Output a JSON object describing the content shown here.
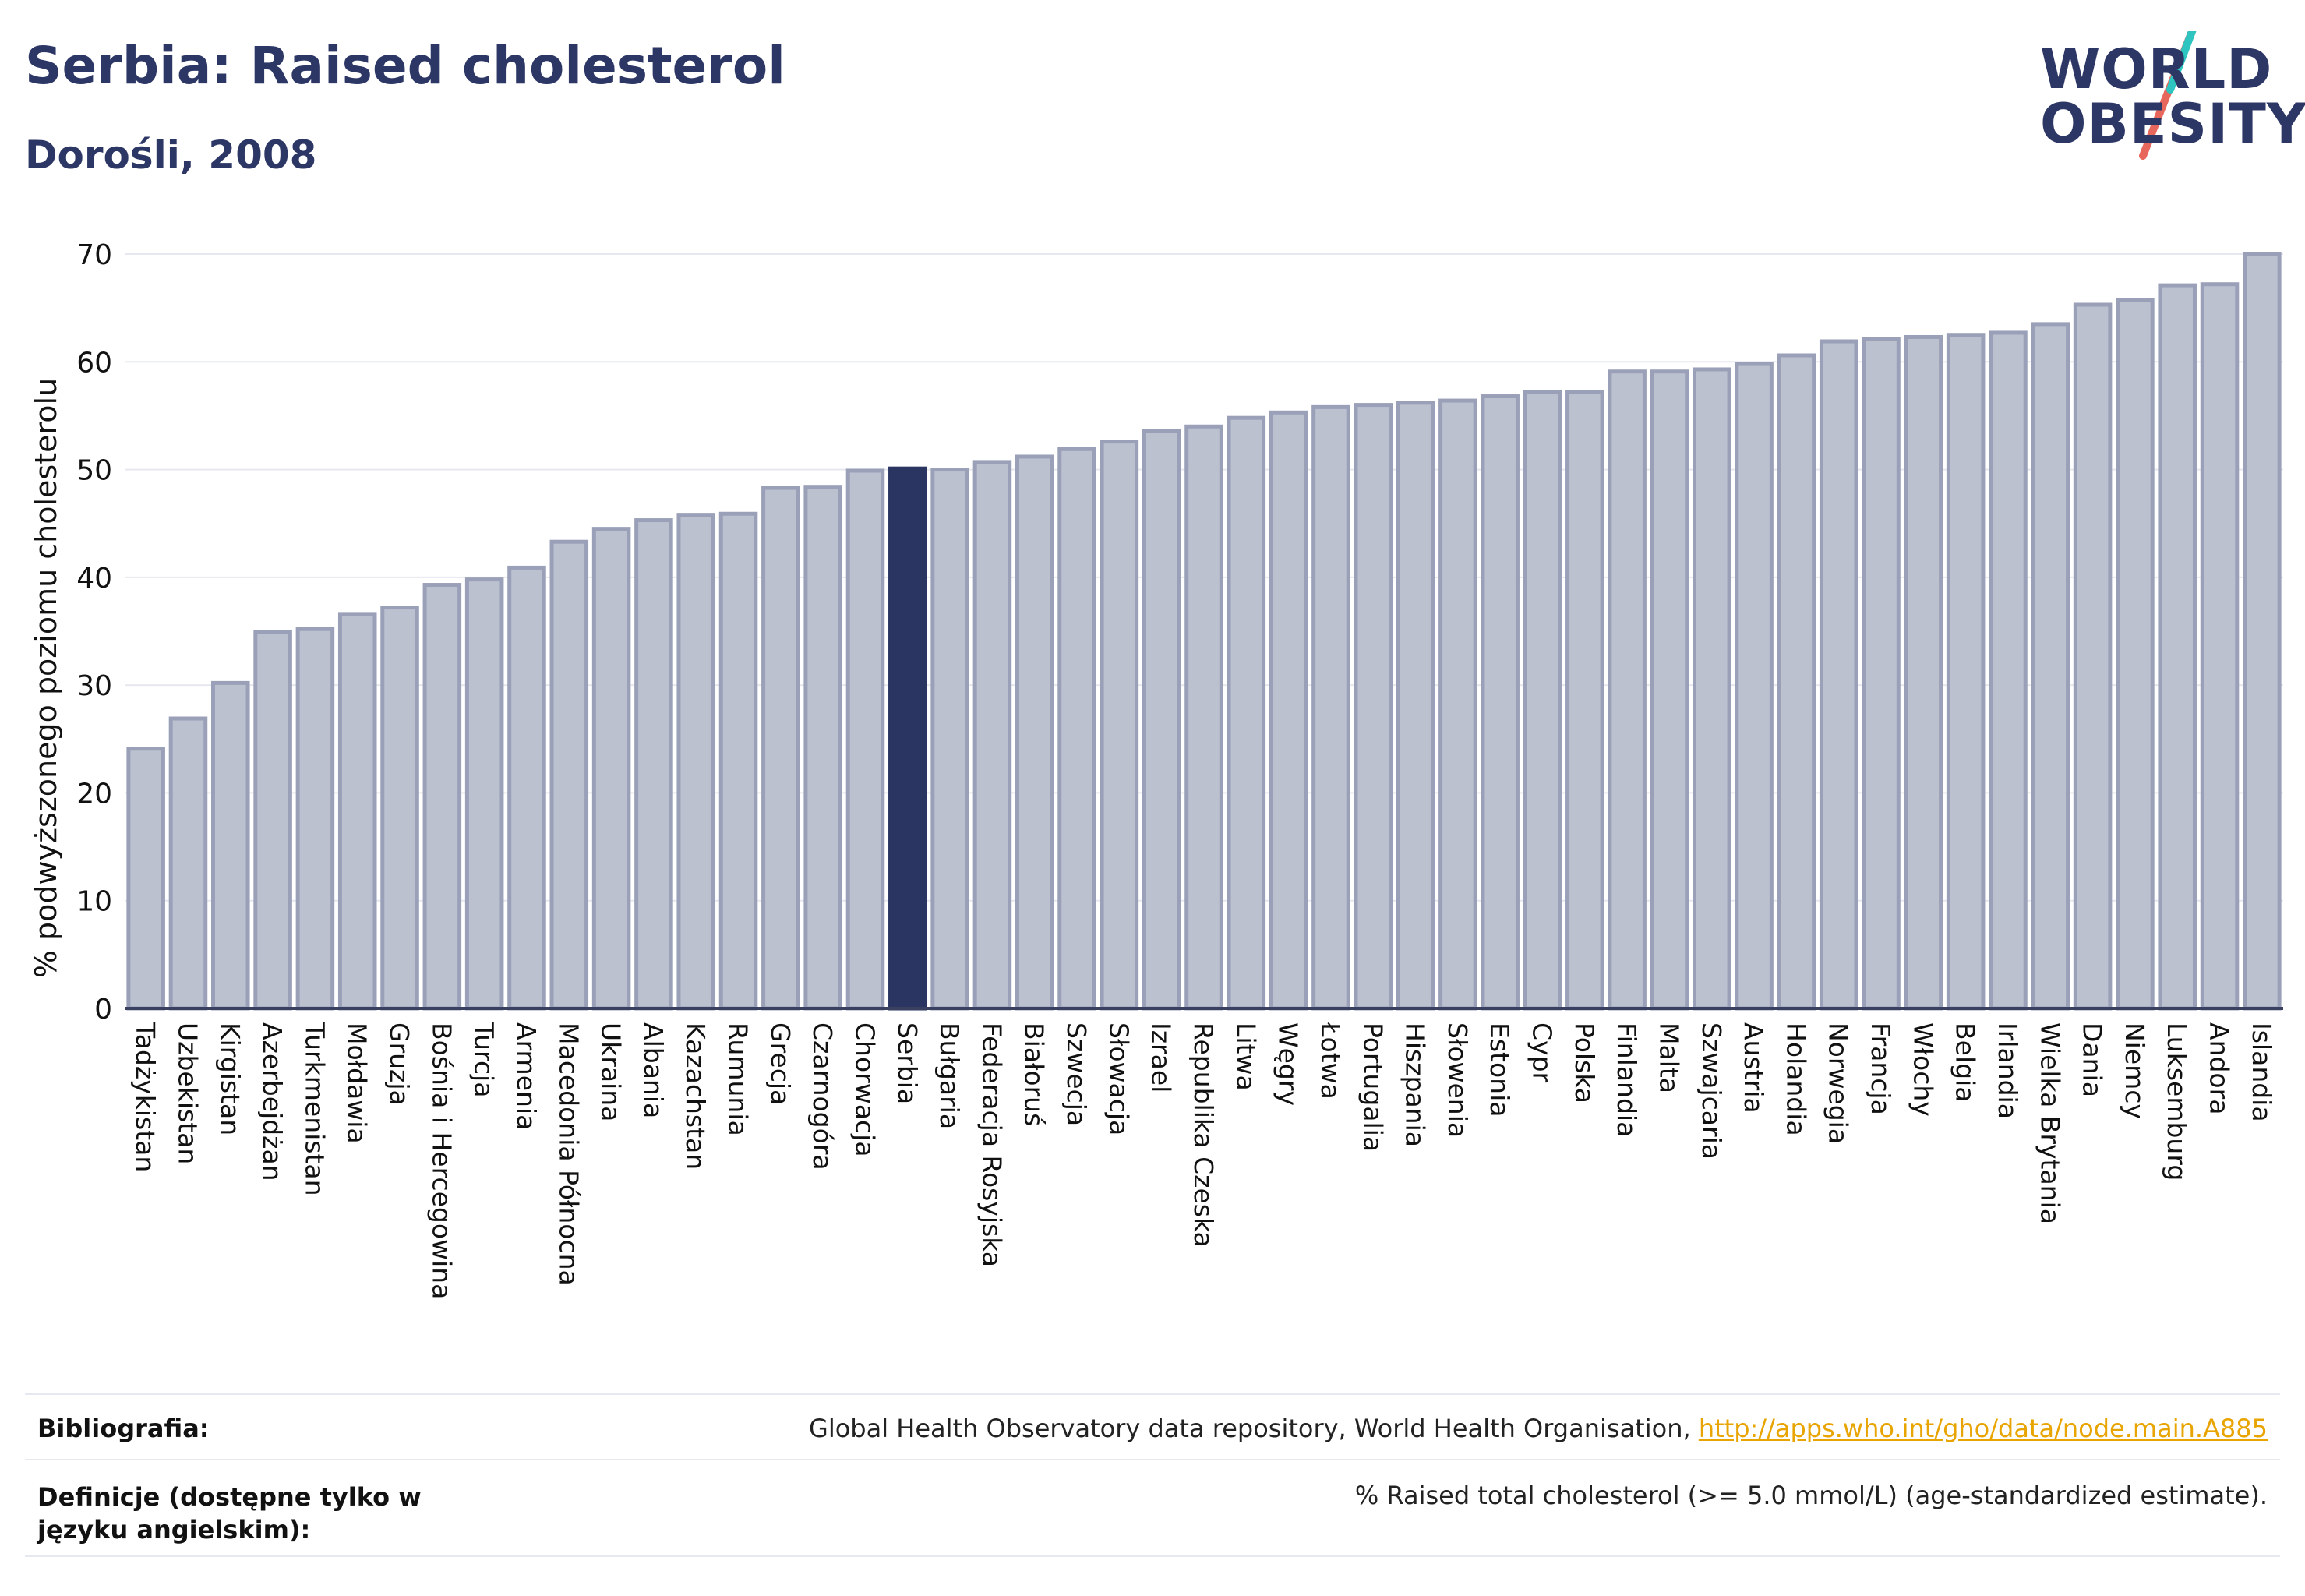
{
  "header": {
    "title": "Serbia: Raised cholesterol",
    "subtitle": "Dorośli, 2008"
  },
  "logo": {
    "line1": "WORLD",
    "line2": "OBESITY"
  },
  "colors": {
    "bar": "#bcc1d0",
    "bar_border": "#9aa0b8",
    "highlight": "#2a3561",
    "axis_text": "#111111",
    "grid": "#e6e8ef"
  },
  "chart_data": {
    "type": "bar",
    "ylabel": "% podwyższonego poziomu cholesterolu",
    "ylim": [
      0,
      70
    ],
    "yticks": [
      0,
      10,
      20,
      30,
      40,
      50,
      60,
      70
    ],
    "highlight": "Serbia",
    "categories": [
      "Tadżykistan",
      "Uzbekistan",
      "Kirgistan",
      "Azerbejdżan",
      "Turkmenistan",
      "Mołdawia",
      "Gruzja",
      "Bośnia i Hercegowina",
      "Turcja",
      "Armenia",
      "Macedonia Północna",
      "Ukraina",
      "Albania",
      "Kazachstan",
      "Rumunia",
      "Grecja",
      "Czarnogóra",
      "Chorwacja",
      "Serbia",
      "Bułgaria",
      "Federacja Rosyjska",
      "Białoruś",
      "Szwecja",
      "Słowacja",
      "Izrael",
      "Republika Czeska",
      "Litwa",
      "Węgry",
      "Łotwa",
      "Portugalia",
      "Hiszpania",
      "Słowenia",
      "Estonia",
      "Cypr",
      "Polska",
      "Finlandia",
      "Malta",
      "Szwajcaria",
      "Austria",
      "Holandia",
      "Norwegia",
      "Francja",
      "Włochy",
      "Belgia",
      "Irlandia",
      "Wielka Brytania",
      "Dania",
      "Niemcy",
      "Luksemburg",
      "Andora",
      "Islandia"
    ],
    "values": [
      24.1,
      26.9,
      30.2,
      34.9,
      35.2,
      36.6,
      37.2,
      39.3,
      39.8,
      40.9,
      43.3,
      44.5,
      45.3,
      45.8,
      45.9,
      48.3,
      48.4,
      49.9,
      50.1,
      50.0,
      50.7,
      51.2,
      51.9,
      52.6,
      53.6,
      54.0,
      54.8,
      55.3,
      55.8,
      56.0,
      56.2,
      56.4,
      56.8,
      57.2,
      57.2,
      59.1,
      59.1,
      59.3,
      59.8,
      60.6,
      61.9,
      62.1,
      62.3,
      62.5,
      62.7,
      63.5,
      65.3,
      65.7,
      67.1,
      67.2,
      70.0
    ]
  },
  "footer": {
    "bibliography_label": "Bibliografia:",
    "bibliography_text": "Global Health Observatory data repository, World Health Organisation, ",
    "bibliography_link": "http://apps.who.int/gho/data/node.main.A885",
    "definition_label": "Definicje (dostępne tylko w języku angielskim):",
    "definition_text": "% Raised total cholesterol (>= 5.0 mmol/L) (age-standardized estimate)."
  }
}
